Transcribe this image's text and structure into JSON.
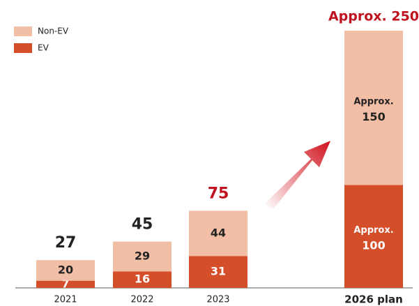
{
  "chart_data": {
    "type": "stacked_bar",
    "categories": [
      "2021",
      "2022",
      "2023",
      "2026 plan"
    ],
    "series": [
      {
        "name": "EV",
        "color": "#d44e2a",
        "values": [
          7,
          16,
          31,
          100
        ],
        "value_labels": [
          "7",
          "16",
          "31",
          "Approx. 100"
        ]
      },
      {
        "name": "Non-EV",
        "color": "#f2bfa6",
        "values": [
          20,
          29,
          44,
          150
        ],
        "value_labels": [
          "20",
          "29",
          "44",
          "Approx. 150"
        ]
      }
    ],
    "totals": {
      "values": [
        27,
        45,
        75,
        250
      ],
      "value_labels": [
        "27",
        "45",
        "75",
        "Approx. 250"
      ]
    },
    "ylim": [
      0,
      250
    ]
  }
}
